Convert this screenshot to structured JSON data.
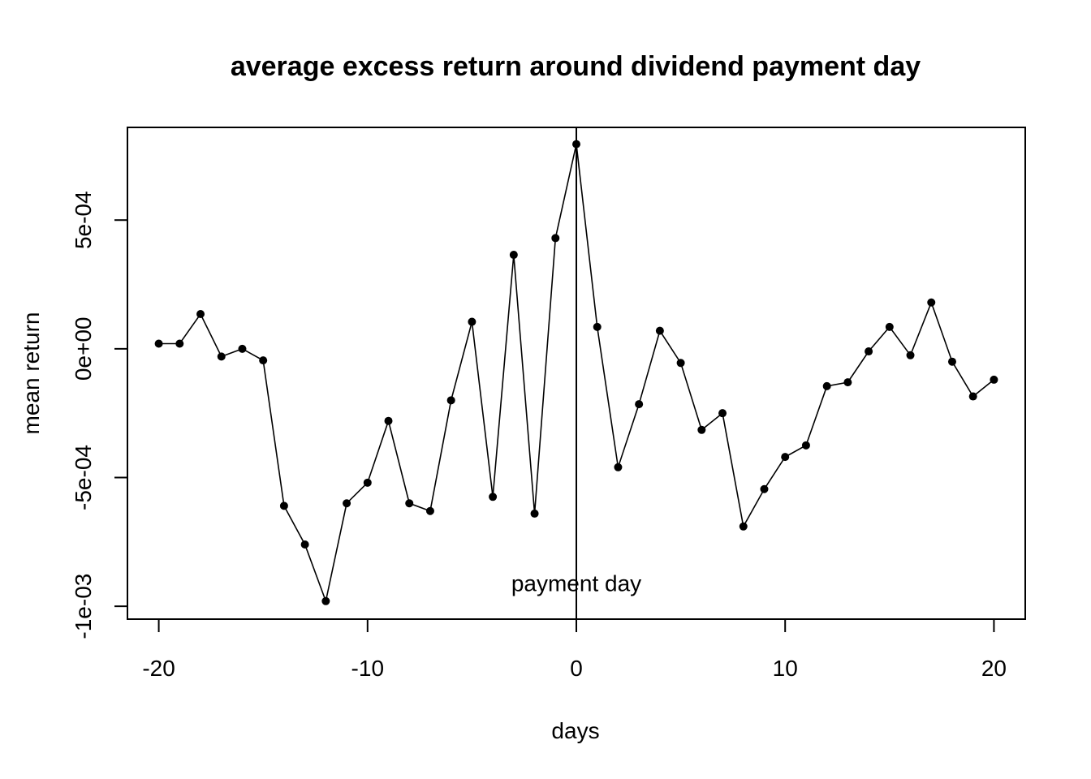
{
  "chart_data": {
    "type": "line",
    "title": "average excess return around dividend payment day",
    "xlabel": "days",
    "ylabel": "mean return",
    "xlim": [
      -21.5,
      21.5
    ],
    "ylim": [
      -0.00105,
      0.00086
    ],
    "x_ticks": [
      -20,
      -10,
      0,
      10,
      20
    ],
    "x_tick_labels": [
      "-20",
      "-10",
      "0",
      "10",
      "20"
    ],
    "y_ticks": [
      -0.001,
      -0.0005,
      0,
      0.0005
    ],
    "y_tick_labels": [
      "-1e-03",
      "-5e-04",
      "0e+00",
      "5e-04"
    ],
    "grid": false,
    "markers": "filled-circle",
    "line_color": "#000000",
    "vline": {
      "x": 0
    },
    "annotation": {
      "text": "payment day",
      "x": 0,
      "y": -0.00091
    },
    "x": [
      -20,
      -19,
      -18,
      -17,
      -16,
      -15,
      -14,
      -13,
      -12,
      -11,
      -10,
      -9,
      -8,
      -7,
      -6,
      -5,
      -4,
      -3,
      -2,
      -1,
      0,
      1,
      2,
      3,
      4,
      5,
      6,
      7,
      8,
      9,
      10,
      11,
      12,
      13,
      14,
      15,
      16,
      17,
      18,
      19,
      20
    ],
    "y": [
      2e-05,
      2e-05,
      0.000135,
      -3e-05,
      0.0,
      -4.5e-05,
      -0.00061,
      -0.00076,
      -0.00098,
      -0.0006,
      -0.00052,
      -0.00028,
      -0.0006,
      -0.00063,
      -0.0002,
      0.000105,
      -0.000575,
      0.000365,
      -0.00064,
      0.00043,
      0.000795,
      8.5e-05,
      -0.00046,
      -0.000215,
      7e-05,
      -5.5e-05,
      -0.000315,
      -0.00025,
      -0.00069,
      -0.000545,
      -0.00042,
      -0.000375,
      -0.000145,
      -0.00013,
      -1e-05,
      8.5e-05,
      -2.5e-05,
      0.00018,
      -5e-05,
      -0.000185,
      -0.00012
    ]
  }
}
